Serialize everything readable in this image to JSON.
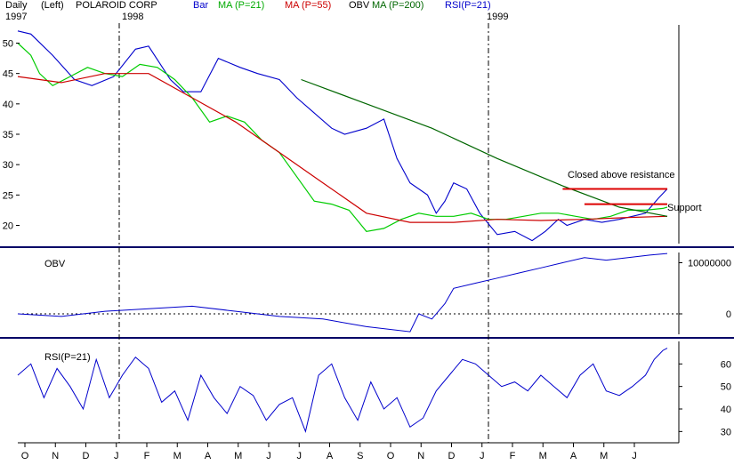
{
  "header": {
    "period": "Daily",
    "axis_side": "(Left)",
    "title": "POLAROID CORP",
    "legend_bar": "Bar",
    "legend_ma21": "MA (P=21)",
    "legend_ma55": "MA (P=55)",
    "legend_obv": "OBV",
    "legend_ma200": "MA (P=200)",
    "legend_rsi": "RSI(P=21)"
  },
  "years": [
    "1997",
    "1998",
    "1999"
  ],
  "colors": {
    "bar": "#0000cc",
    "ma21": "#00cc00",
    "ma55": "#cc0000",
    "ma200": "#006600",
    "obv": "#0000cc",
    "rsi": "#0000cc",
    "resistance": "#dd0000",
    "divider": "#000066"
  },
  "annotations": {
    "resistance": "Closed above resistance",
    "support": "Support"
  },
  "chart_data": [
    {
      "type": "bar",
      "panel": "price",
      "ylim": [
        17,
        53
      ],
      "yticks": [
        20,
        25,
        30,
        35,
        40,
        45,
        50
      ],
      "ytick_labels": [
        "20",
        "25",
        "30",
        "35",
        "40",
        "45",
        "50"
      ],
      "months": [
        "O",
        "N",
        "D",
        "J",
        "F",
        "M",
        "A",
        "M",
        "J",
        "J",
        "A",
        "S",
        "O",
        "N",
        "D",
        "J",
        "F",
        "M",
        "A",
        "M",
        "J"
      ],
      "price_path": [
        [
          0,
          52
        ],
        [
          3,
          51.5
        ],
        [
          8,
          48
        ],
        [
          13,
          44
        ],
        [
          17,
          43
        ],
        [
          22,
          44.5
        ],
        [
          27,
          49
        ],
        [
          30,
          49.5
        ],
        [
          35,
          44
        ],
        [
          38,
          42
        ],
        [
          42,
          42
        ],
        [
          46,
          47.5
        ],
        [
          51,
          46
        ],
        [
          55,
          45
        ],
        [
          60,
          44
        ],
        [
          64,
          41
        ],
        [
          68,
          38.5
        ],
        [
          72,
          36
        ],
        [
          75,
          35
        ],
        [
          80,
          36
        ],
        [
          84,
          37.5
        ],
        [
          87,
          31
        ],
        [
          90,
          27
        ],
        [
          94,
          25
        ],
        [
          96,
          22
        ],
        [
          98,
          24
        ],
        [
          100,
          27
        ],
        [
          103,
          26
        ],
        [
          106,
          22
        ],
        [
          110,
          18.5
        ],
        [
          114,
          19
        ],
        [
          118,
          17.5
        ],
        [
          121,
          19
        ],
        [
          124,
          21
        ],
        [
          126,
          20
        ],
        [
          130,
          21
        ],
        [
          134,
          20.5
        ],
        [
          138,
          21
        ],
        [
          141,
          21.5
        ],
        [
          144,
          22
        ],
        [
          147,
          24.5
        ],
        [
          149,
          26
        ]
      ],
      "ma21_path": [
        [
          0,
          50
        ],
        [
          3,
          48
        ],
        [
          5,
          45
        ],
        [
          8,
          43
        ],
        [
          12,
          44.5
        ],
        [
          16,
          46
        ],
        [
          20,
          45
        ],
        [
          24,
          44.5
        ],
        [
          28,
          46.5
        ],
        [
          32,
          46
        ],
        [
          36,
          44
        ],
        [
          40,
          41
        ],
        [
          44,
          37
        ],
        [
          48,
          38
        ],
        [
          52,
          37
        ],
        [
          56,
          34
        ],
        [
          60,
          32
        ],
        [
          64,
          28
        ],
        [
          68,
          24
        ],
        [
          72,
          23.5
        ],
        [
          76,
          22.5
        ],
        [
          80,
          19
        ],
        [
          84,
          19.5
        ],
        [
          88,
          21
        ],
        [
          92,
          22
        ],
        [
          96,
          21.5
        ],
        [
          100,
          21.5
        ],
        [
          104,
          22
        ],
        [
          108,
          21
        ],
        [
          112,
          21
        ],
        [
          116,
          21.5
        ],
        [
          120,
          22
        ],
        [
          124,
          22
        ],
        [
          128,
          21.5
        ],
        [
          132,
          21
        ],
        [
          136,
          21.5
        ],
        [
          140,
          22.5
        ],
        [
          144,
          22.5
        ],
        [
          148,
          22.8
        ],
        [
          149,
          23
        ]
      ],
      "ma55_path": [
        [
          0,
          44.5
        ],
        [
          10,
          43.5
        ],
        [
          20,
          45
        ],
        [
          30,
          45
        ],
        [
          40,
          41
        ],
        [
          50,
          37
        ],
        [
          60,
          32
        ],
        [
          70,
          27
        ],
        [
          80,
          22
        ],
        [
          90,
          20.5
        ],
        [
          100,
          20.5
        ],
        [
          110,
          21
        ],
        [
          120,
          20.8
        ],
        [
          130,
          21
        ],
        [
          140,
          21.3
        ],
        [
          149,
          21.5
        ]
      ],
      "ma200_path": [
        [
          65,
          44
        ],
        [
          80,
          40
        ],
        [
          95,
          36
        ],
        [
          110,
          31
        ],
        [
          125,
          26.5
        ],
        [
          138,
          23
        ],
        [
          149,
          21.5
        ]
      ],
      "resistance_level": 26,
      "support_level": 23.5
    },
    {
      "type": "line",
      "panel": "obv",
      "ylim": [
        -4000000,
        12000000
      ],
      "yticks": [
        0,
        10000000
      ],
      "ytick_labels": [
        "0",
        "10000000"
      ],
      "obv_path": [
        [
          0,
          0
        ],
        [
          10,
          -500000
        ],
        [
          20,
          500000
        ],
        [
          30,
          1000000
        ],
        [
          40,
          1500000
        ],
        [
          50,
          500000
        ],
        [
          60,
          -500000
        ],
        [
          70,
          -1000000
        ],
        [
          80,
          -2500000
        ],
        [
          90,
          -3500000
        ],
        [
          92,
          0
        ],
        [
          95,
          -1000000
        ],
        [
          98,
          2000000
        ],
        [
          100,
          5000000
        ],
        [
          105,
          6000000
        ],
        [
          110,
          7000000
        ],
        [
          115,
          8000000
        ],
        [
          120,
          9000000
        ],
        [
          125,
          10000000
        ],
        [
          130,
          11000000
        ],
        [
          135,
          10500000
        ],
        [
          140,
          11000000
        ],
        [
          145,
          11500000
        ],
        [
          149,
          11800000
        ]
      ]
    },
    {
      "type": "line",
      "panel": "rsi",
      "ylim": [
        25,
        70
      ],
      "yticks": [
        30,
        40,
        50,
        60
      ],
      "ytick_labels": [
        "30",
        "40",
        "50",
        "60"
      ],
      "rsi_path": [
        [
          0,
          55
        ],
        [
          3,
          60
        ],
        [
          6,
          45
        ],
        [
          9,
          58
        ],
        [
          12,
          50
        ],
        [
          15,
          40
        ],
        [
          18,
          62
        ],
        [
          21,
          45
        ],
        [
          24,
          55
        ],
        [
          27,
          63
        ],
        [
          30,
          58
        ],
        [
          33,
          43
        ],
        [
          36,
          48
        ],
        [
          39,
          35
        ],
        [
          42,
          55
        ],
        [
          45,
          45
        ],
        [
          48,
          38
        ],
        [
          51,
          50
        ],
        [
          54,
          46
        ],
        [
          57,
          35
        ],
        [
          60,
          42
        ],
        [
          63,
          45
        ],
        [
          66,
          30
        ],
        [
          69,
          55
        ],
        [
          72,
          60
        ],
        [
          75,
          45
        ],
        [
          78,
          35
        ],
        [
          81,
          52
        ],
        [
          84,
          40
        ],
        [
          87,
          45
        ],
        [
          90,
          32
        ],
        [
          93,
          36
        ],
        [
          96,
          48
        ],
        [
          99,
          55
        ],
        [
          102,
          62
        ],
        [
          105,
          60
        ],
        [
          108,
          55
        ],
        [
          111,
          50
        ],
        [
          114,
          52
        ],
        [
          117,
          48
        ],
        [
          120,
          55
        ],
        [
          123,
          50
        ],
        [
          126,
          45
        ],
        [
          129,
          55
        ],
        [
          132,
          60
        ],
        [
          135,
          48
        ],
        [
          138,
          46
        ],
        [
          141,
          50
        ],
        [
          144,
          55
        ],
        [
          146,
          62
        ],
        [
          148,
          66
        ],
        [
          149,
          67
        ]
      ]
    }
  ]
}
